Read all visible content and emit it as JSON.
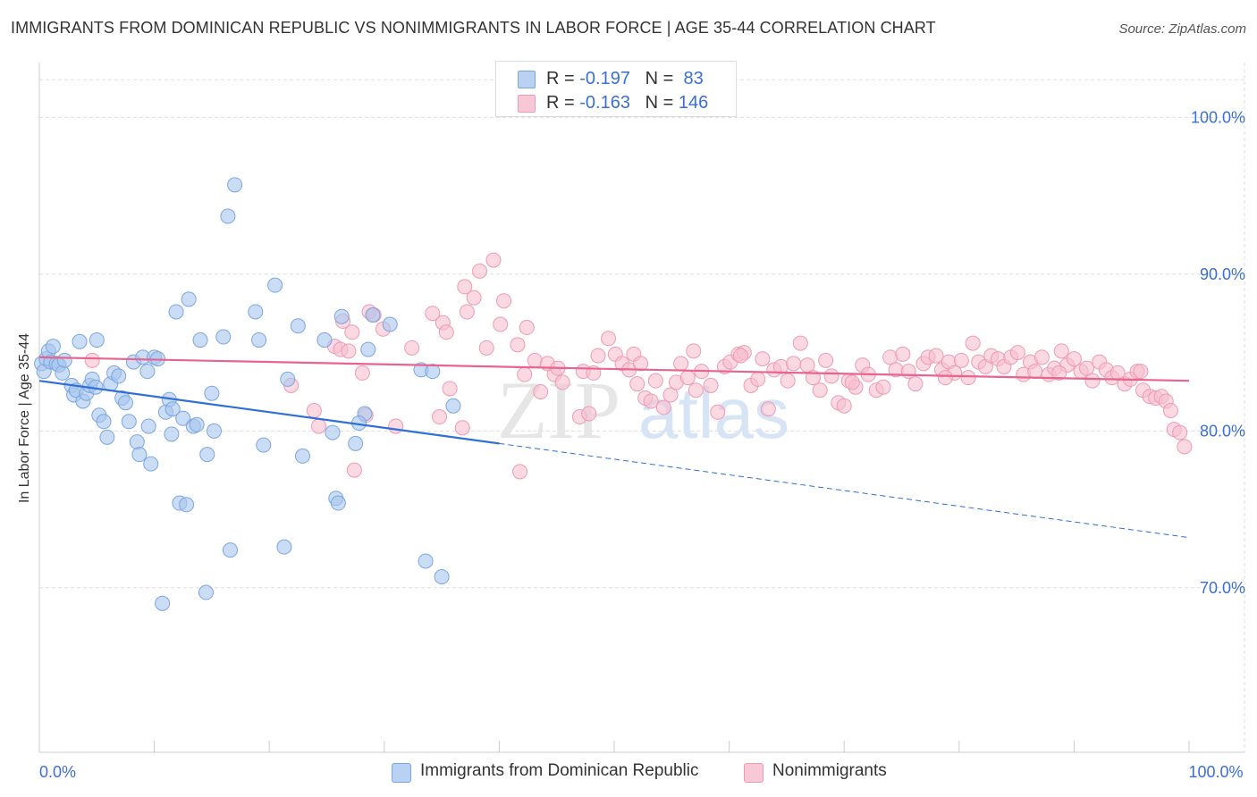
{
  "header": {
    "title": "IMMIGRANTS FROM DOMINICAN REPUBLIC VS NONIMMIGRANTS IN LABOR FORCE | AGE 35-44 CORRELATION CHART",
    "source": "Source: ZipAtlas.com"
  },
  "stats_legend": {
    "rows": [
      {
        "r_label": "R =",
        "r_value": "-0.197",
        "n_label": "N =",
        "n_value": "83"
      },
      {
        "r_label": "R =",
        "r_value": "-0.163",
        "n_label": "N =",
        "n_value": "146"
      }
    ]
  },
  "watermark": {
    "zip": "ZIP",
    "atlas": "atlas"
  },
  "colors": {
    "blue_fill": "#a9c6ef",
    "blue_stroke": "#7aa6e0",
    "blue_line": "#2f6fd6",
    "pink_fill": "#f6bfd0",
    "pink_stroke": "#ee9ab4",
    "pink_line": "#e8638f",
    "axis_label": "#3a6fd6",
    "grid": "#dddddd"
  },
  "chart_data": {
    "type": "scatter",
    "title": "IMMIGRANTS FROM DOMINICAN REPUBLIC VS NONIMMIGRANTS IN LABOR FORCE | AGE 35-44 CORRELATION CHART",
    "ylabel": "In Labor Force | Age 35-44",
    "xlabel": "",
    "xlim": [
      0,
      100
    ],
    "ylim": [
      59.5,
      103.5
    ],
    "x_tick_labels": [
      {
        "value": 0,
        "label": "0.0%"
      },
      {
        "value": 100,
        "label": "100.0%"
      }
    ],
    "y_tick_labels": [
      {
        "value": 100,
        "label": "100.0%"
      },
      {
        "value": 90,
        "label": "90.0%"
      },
      {
        "value": 80,
        "label": "80.0%"
      },
      {
        "value": 70,
        "label": "70.0%"
      }
    ],
    "grid": true,
    "legend_position": "bottom",
    "series": [
      {
        "name": "Immigrants from Dominican Republic",
        "color": "#a9c6ef",
        "r": -0.197,
        "n": 83,
        "trend": {
          "x0": 0.0,
          "y0": 83.2,
          "x1": 40.0,
          "y1": 79.2,
          "dash_to_x": 100.0,
          "dash_to_y": 73.2
        },
        "points": [
          [
            0.2,
            84.3
          ],
          [
            0.4,
            83.8
          ],
          [
            0.6,
            84.6
          ],
          [
            0.8,
            85.1
          ],
          [
            1.0,
            84.4
          ],
          [
            1.2,
            85.4
          ],
          [
            1.5,
            84.3
          ],
          [
            1.7,
            84.2
          ],
          [
            2.0,
            83.7
          ],
          [
            2.2,
            84.5
          ],
          [
            2.8,
            82.9
          ],
          [
            3.0,
            82.3
          ],
          [
            3.2,
            82.6
          ],
          [
            3.5,
            85.7
          ],
          [
            3.8,
            81.9
          ],
          [
            4.1,
            82.4
          ],
          [
            4.4,
            82.9
          ],
          [
            4.6,
            83.3
          ],
          [
            4.9,
            82.8
          ],
          [
            5.2,
            81.0
          ],
          [
            5.6,
            80.6
          ],
          [
            5.9,
            79.6
          ],
          [
            6.2,
            83.0
          ],
          [
            6.5,
            83.7
          ],
          [
            6.9,
            83.5
          ],
          [
            7.2,
            82.1
          ],
          [
            7.5,
            81.8
          ],
          [
            7.8,
            80.6
          ],
          [
            8.2,
            84.4
          ],
          [
            8.5,
            79.3
          ],
          [
            8.7,
            78.5
          ],
          [
            9.0,
            84.7
          ],
          [
            9.4,
            83.8
          ],
          [
            9.7,
            77.9
          ],
          [
            10.0,
            84.7
          ],
          [
            10.3,
            84.6
          ],
          [
            10.7,
            69.0
          ],
          [
            11.0,
            81.2
          ],
          [
            11.3,
            82.0
          ],
          [
            11.6,
            81.4
          ],
          [
            11.9,
            87.6
          ],
          [
            12.2,
            75.4
          ],
          [
            12.5,
            80.8
          ],
          [
            12.8,
            75.3
          ],
          [
            13.0,
            88.4
          ],
          [
            13.4,
            80.3
          ],
          [
            13.7,
            80.4
          ],
          [
            14.0,
            85.8
          ],
          [
            14.5,
            69.7
          ],
          [
            14.6,
            78.5
          ],
          [
            15.0,
            82.4
          ],
          [
            15.2,
            80.0
          ],
          [
            16.0,
            86.0
          ],
          [
            16.4,
            93.7
          ],
          [
            16.6,
            72.4
          ],
          [
            17.0,
            95.7
          ],
          [
            18.8,
            87.6
          ],
          [
            19.1,
            85.8
          ],
          [
            19.5,
            79.1
          ],
          [
            20.5,
            89.3
          ],
          [
            21.3,
            72.6
          ],
          [
            21.6,
            83.3
          ],
          [
            22.9,
            78.4
          ],
          [
            22.5,
            86.7
          ],
          [
            25.5,
            79.9
          ],
          [
            25.8,
            75.7
          ],
          [
            26.0,
            75.4
          ],
          [
            26.3,
            87.3
          ],
          [
            27.5,
            79.2
          ],
          [
            28.3,
            81.1
          ],
          [
            28.6,
            85.2
          ],
          [
            29.0,
            87.4
          ],
          [
            30.5,
            86.8
          ],
          [
            33.2,
            83.9
          ],
          [
            33.6,
            71.7
          ],
          [
            34.2,
            83.8
          ],
          [
            35.0,
            70.7
          ],
          [
            36.0,
            81.6
          ],
          [
            24.8,
            85.8
          ],
          [
            9.5,
            80.3
          ],
          [
            11.5,
            79.8
          ],
          [
            27.8,
            80.5
          ],
          [
            5.0,
            85.8
          ]
        ]
      },
      {
        "name": "Nonimmigrants",
        "color": "#f6bfd0",
        "r": -0.163,
        "n": 146,
        "trend": {
          "x0": 0.0,
          "y0": 84.7,
          "x1": 100.0,
          "y1": 83.2
        },
        "points": [
          [
            4.6,
            84.5
          ],
          [
            21.9,
            82.9
          ],
          [
            23.9,
            81.3
          ],
          [
            24.3,
            80.3
          ],
          [
            25.7,
            85.4
          ],
          [
            26.2,
            85.2
          ],
          [
            26.4,
            87.0
          ],
          [
            27.2,
            86.3
          ],
          [
            26.9,
            85.1
          ],
          [
            28.1,
            83.7
          ],
          [
            28.4,
            81.0
          ],
          [
            27.4,
            77.5
          ],
          [
            28.7,
            87.6
          ],
          [
            29.1,
            87.4
          ],
          [
            29.9,
            86.5
          ],
          [
            31.0,
            80.3
          ],
          [
            32.4,
            85.3
          ],
          [
            34.2,
            87.5
          ],
          [
            35.1,
            86.9
          ],
          [
            35.4,
            86.3
          ],
          [
            35.7,
            82.7
          ],
          [
            34.8,
            80.9
          ],
          [
            36.8,
            80.2
          ],
          [
            37.2,
            87.6
          ],
          [
            37.0,
            89.2
          ],
          [
            37.8,
            88.5
          ],
          [
            38.3,
            90.2
          ],
          [
            38.9,
            85.3
          ],
          [
            39.5,
            90.9
          ],
          [
            40.1,
            86.8
          ],
          [
            40.4,
            88.3
          ],
          [
            41.6,
            85.5
          ],
          [
            41.8,
            77.4
          ],
          [
            42.2,
            83.6
          ],
          [
            42.4,
            86.6
          ],
          [
            43.1,
            84.5
          ],
          [
            43.6,
            82.5
          ],
          [
            44.2,
            84.3
          ],
          [
            44.8,
            83.6
          ],
          [
            45.1,
            84.0
          ],
          [
            45.5,
            83.1
          ],
          [
            47.0,
            80.9
          ],
          [
            47.8,
            81.1
          ],
          [
            47.3,
            83.8
          ],
          [
            48.2,
            83.7
          ],
          [
            48.6,
            84.8
          ],
          [
            49.5,
            85.9
          ],
          [
            50.1,
            84.9
          ],
          [
            50.7,
            84.3
          ],
          [
            51.3,
            83.9
          ],
          [
            51.7,
            84.9
          ],
          [
            52.3,
            84.3
          ],
          [
            52.7,
            82.1
          ],
          [
            53.2,
            81.9
          ],
          [
            53.6,
            83.2
          ],
          [
            54.3,
            81.5
          ],
          [
            54.9,
            82.3
          ],
          [
            55.4,
            83.1
          ],
          [
            55.8,
            84.3
          ],
          [
            56.4,
            83.4
          ],
          [
            56.9,
            85.1
          ],
          [
            57.6,
            83.8
          ],
          [
            58.4,
            82.9
          ],
          [
            59.0,
            81.2
          ],
          [
            59.6,
            84.1
          ],
          [
            60.1,
            84.4
          ],
          [
            60.8,
            84.9
          ],
          [
            61.3,
            85.0
          ],
          [
            61.9,
            82.9
          ],
          [
            62.5,
            83.3
          ],
          [
            62.9,
            84.6
          ],
          [
            63.4,
            81.4
          ],
          [
            63.9,
            83.9
          ],
          [
            64.5,
            84.1
          ],
          [
            65.1,
            83.2
          ],
          [
            65.6,
            84.3
          ],
          [
            66.2,
            85.6
          ],
          [
            66.8,
            84.2
          ],
          [
            67.3,
            83.4
          ],
          [
            67.9,
            82.6
          ],
          [
            68.4,
            84.5
          ],
          [
            68.9,
            83.5
          ],
          [
            69.5,
            81.8
          ],
          [
            70.0,
            81.6
          ],
          [
            70.4,
            83.2
          ],
          [
            71.0,
            82.8
          ],
          [
            71.6,
            84.2
          ],
          [
            72.1,
            83.6
          ],
          [
            72.8,
            82.6
          ],
          [
            73.4,
            82.8
          ],
          [
            74.0,
            84.7
          ],
          [
            74.5,
            83.9
          ],
          [
            75.1,
            84.9
          ],
          [
            75.6,
            83.8
          ],
          [
            76.2,
            83.0
          ],
          [
            76.9,
            84.3
          ],
          [
            77.3,
            84.7
          ],
          [
            78.0,
            84.8
          ],
          [
            78.5,
            83.9
          ],
          [
            79.1,
            84.4
          ],
          [
            79.6,
            83.7
          ],
          [
            80.2,
            84.5
          ],
          [
            80.8,
            83.4
          ],
          [
            81.2,
            85.6
          ],
          [
            81.7,
            84.4
          ],
          [
            82.3,
            84.1
          ],
          [
            82.8,
            84.8
          ],
          [
            83.4,
            84.6
          ],
          [
            83.9,
            84.1
          ],
          [
            84.5,
            84.7
          ],
          [
            85.1,
            85.0
          ],
          [
            85.6,
            83.6
          ],
          [
            86.2,
            84.4
          ],
          [
            86.6,
            83.8
          ],
          [
            87.2,
            84.7
          ],
          [
            87.8,
            83.6
          ],
          [
            88.3,
            84.0
          ],
          [
            88.9,
            85.1
          ],
          [
            89.4,
            84.2
          ],
          [
            90.0,
            84.6
          ],
          [
            90.6,
            83.8
          ],
          [
            91.1,
            84.0
          ],
          [
            91.6,
            83.2
          ],
          [
            92.2,
            84.4
          ],
          [
            92.8,
            83.9
          ],
          [
            93.3,
            83.4
          ],
          [
            93.8,
            83.7
          ],
          [
            94.4,
            83.0
          ],
          [
            94.9,
            83.3
          ],
          [
            95.5,
            83.8
          ],
          [
            96.0,
            82.6
          ],
          [
            96.6,
            82.2
          ],
          [
            97.1,
            82.1
          ],
          [
            97.6,
            82.2
          ],
          [
            98.0,
            81.9
          ],
          [
            98.4,
            81.3
          ],
          [
            98.7,
            80.1
          ],
          [
            99.2,
            79.9
          ],
          [
            99.6,
            79.0
          ],
          [
            61.0,
            84.8
          ],
          [
            70.7,
            83.1
          ],
          [
            57.1,
            82.6
          ],
          [
            88.7,
            83.7
          ],
          [
            95.8,
            83.8
          ],
          [
            52.0,
            83.0
          ],
          [
            78.8,
            83.4
          ]
        ]
      }
    ]
  },
  "bottom_legend": {
    "items": [
      {
        "label": "Immigrants from Dominican Republic"
      },
      {
        "label": "Nonimmigrants"
      }
    ]
  }
}
